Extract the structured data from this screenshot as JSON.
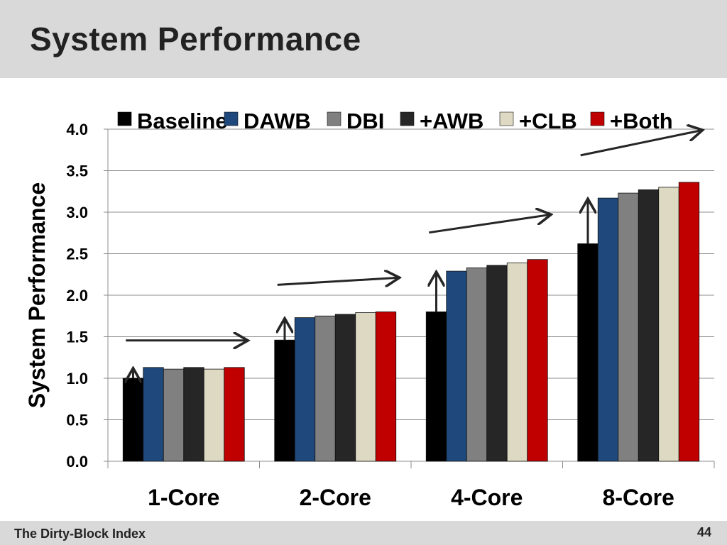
{
  "slide": {
    "title": "System Performance",
    "footer": "The Dirty-Block Index",
    "page_number": "44"
  },
  "chart_data": {
    "type": "bar",
    "title": "",
    "xlabel": "",
    "ylabel": "System Performance",
    "ylim": [
      0,
      4.0
    ],
    "yticks": [
      "0.0",
      "0.5",
      "1.0",
      "1.5",
      "2.0",
      "2.5",
      "3.0",
      "3.5",
      "4.0"
    ],
    "grid": true,
    "legend_position": "top",
    "categories": [
      "1-Core",
      "2-Core",
      "4-Core",
      "8-Core"
    ],
    "series": [
      {
        "name": "Baseline",
        "color": "#000000",
        "values": [
          1.0,
          1.46,
          1.8,
          2.62
        ]
      },
      {
        "name": "DAWB",
        "color": "#1f497d",
        "values": [
          1.13,
          1.73,
          2.29,
          3.17
        ]
      },
      {
        "name": "DBI",
        "color": "#808080",
        "values": [
          1.11,
          1.75,
          2.33,
          3.23
        ]
      },
      {
        "name": "+AWB",
        "color": "#262626",
        "values": [
          1.13,
          1.77,
          2.36,
          3.27
        ]
      },
      {
        "name": "+CLB",
        "color": "#ddd9c3",
        "values": [
          1.11,
          1.79,
          2.39,
          3.3
        ]
      },
      {
        "name": "+Both",
        "color": "#c00000",
        "values": [
          1.13,
          1.8,
          2.43,
          3.36
        ]
      }
    ],
    "annotations": [
      {
        "type": "vertical-arrow",
        "category": "1-Core",
        "from": 1.0,
        "to": 1.13
      },
      {
        "type": "vertical-arrow",
        "category": "2-Core",
        "from": 1.46,
        "to": 1.73
      },
      {
        "type": "vertical-arrow",
        "category": "4-Core",
        "from": 1.8,
        "to": 2.29
      },
      {
        "type": "vertical-arrow",
        "category": "8-Core",
        "from": 2.62,
        "to": 3.17
      },
      {
        "type": "trend-arrow",
        "category": "1-Core"
      },
      {
        "type": "trend-arrow",
        "category": "2-Core"
      },
      {
        "type": "trend-arrow",
        "category": "4-Core"
      },
      {
        "type": "trend-arrow",
        "category": "8-Core"
      }
    ]
  }
}
